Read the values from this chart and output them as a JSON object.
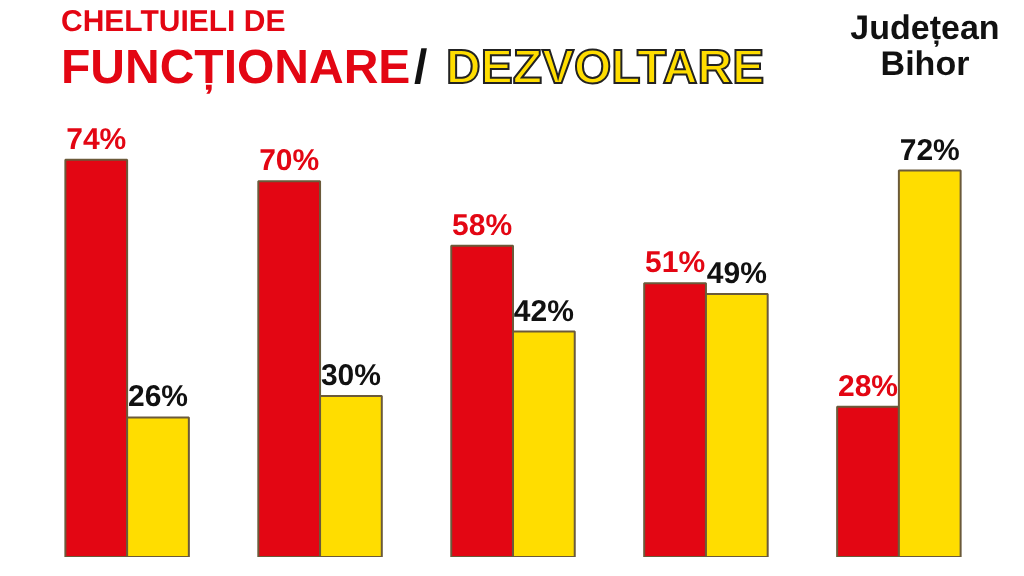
{
  "chart_data": {
    "type": "bar",
    "title": "CHELTUIELI DE",
    "categories": [
      null,
      null,
      null,
      null,
      null
    ],
    "series": [
      {
        "name": "FUNCȚIONARE",
        "color": "#e30613",
        "values": [
          74,
          70,
          58,
          51,
          28
        ],
        "value_labels": [
          "74%",
          "70%",
          "58%",
          "51%",
          "28%"
        ]
      },
      {
        "name": "DEZVOLTARE",
        "color": "#ffdd00",
        "values": [
          26,
          30,
          42,
          49,
          72
        ],
        "value_labels": [
          "26%",
          "30%",
          "42%",
          "49%",
          "72%"
        ]
      }
    ],
    "annotations": [
      "/",
      "Județean Bihor"
    ]
  }
}
